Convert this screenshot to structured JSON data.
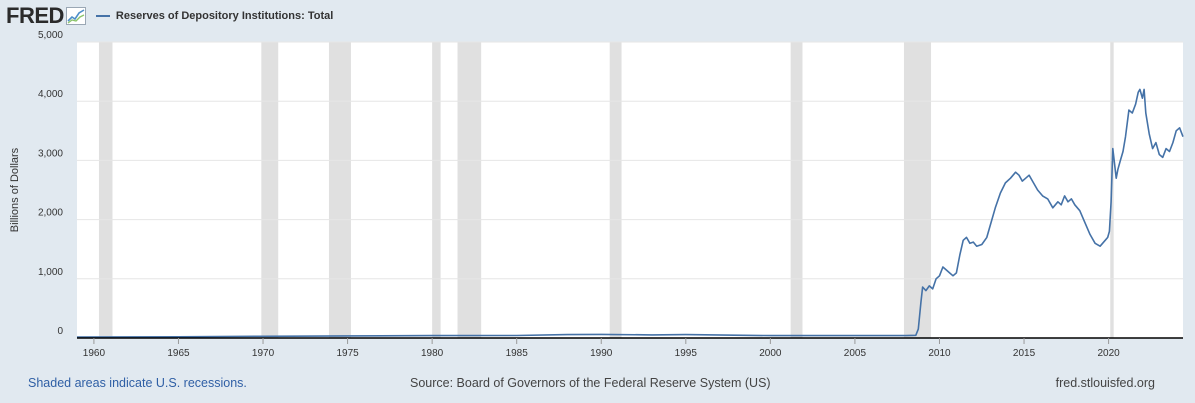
{
  "header": {
    "logo": "FRED",
    "series_label": "Reserves of Depository Institutions: Total"
  },
  "footer": {
    "recessions_note": "Shaded areas indicate U.S. recessions.",
    "source": "Source: Board of Governors of the Federal Reserve System (US)",
    "site": "fred.stlouisfed.org"
  },
  "colors": {
    "line": "#4572a7",
    "recession": "#e0e0e0",
    "background": "#e1e9f0",
    "plot": "#ffffff"
  },
  "icons": [
    "fred-chart-icon"
  ],
  "chart_data": {
    "type": "line",
    "title": "",
    "xlabel": "",
    "ylabel": "Billions of Dollars",
    "xlim": [
      1959.0,
      2024.4
    ],
    "ylim": [
      0,
      5000
    ],
    "y_ticks": [
      0,
      1000,
      2000,
      3000,
      4000,
      5000
    ],
    "y_tick_labels": [
      "0",
      "1,000",
      "2,000",
      "3,000",
      "4,000",
      "5,000"
    ],
    "x_ticks": [
      1960,
      1965,
      1970,
      1975,
      1980,
      1985,
      1990,
      1995,
      2000,
      2005,
      2010,
      2015,
      2020
    ],
    "x_tick_labels": [
      "1960",
      "1965",
      "1970",
      "1975",
      "1980",
      "1985",
      "1990",
      "1995",
      "2000",
      "2005",
      "2010",
      "2015",
      "2020"
    ],
    "grid": true,
    "legend_position": "top-left",
    "recessions": [
      [
        1960.3,
        1961.1
      ],
      [
        1969.9,
        1970.9
      ],
      [
        1973.9,
        1975.2
      ],
      [
        1980.0,
        1980.5
      ],
      [
        1981.5,
        1982.9
      ],
      [
        1990.5,
        1991.2
      ],
      [
        2001.2,
        2001.9
      ],
      [
        2007.9,
        2009.5
      ],
      [
        2020.1,
        2020.3
      ]
    ],
    "series": [
      {
        "x": [
          1959.0,
          1965.0,
          1970.0,
          1975.0,
          1980.0,
          1985.0,
          1988.0,
          1990.0,
          1993.0,
          1995.0,
          2000.0,
          2005.0,
          2008.0,
          2008.6,
          2008.75,
          2008.9,
          2009.0,
          2009.2,
          2009.4,
          2009.6,
          2009.8,
          2010.0,
          2010.2,
          2010.4,
          2010.6,
          2010.8,
          2011.0,
          2011.2,
          2011.4,
          2011.6,
          2011.8,
          2012.0,
          2012.2,
          2012.5,
          2012.8,
          2013.0,
          2013.3,
          2013.6,
          2013.9,
          2014.2,
          2014.5,
          2014.7,
          2014.9,
          2015.1,
          2015.3,
          2015.5,
          2015.8,
          2016.1,
          2016.4,
          2016.7,
          2017.0,
          2017.2,
          2017.4,
          2017.6,
          2017.8,
          2018.0,
          2018.3,
          2018.6,
          2018.9,
          2019.2,
          2019.5,
          2019.8,
          2019.95,
          2020.05,
          2020.15,
          2020.25,
          2020.35,
          2020.45,
          2020.55,
          2020.7,
          2020.85,
          2021.0,
          2021.2,
          2021.4,
          2021.6,
          2021.75,
          2021.85,
          2022.0,
          2022.1,
          2022.2,
          2022.4,
          2022.6,
          2022.8,
          2023.0,
          2023.2,
          2023.4,
          2023.6,
          2023.8,
          2024.0,
          2024.2,
          2024.4
        ],
        "values": [
          15,
          20,
          28,
          35,
          40,
          42,
          58,
          60,
          52,
          58,
          40,
          40,
          40,
          45,
          150,
          600,
          860,
          800,
          880,
          830,
          1000,
          1050,
          1200,
          1150,
          1100,
          1050,
          1100,
          1400,
          1650,
          1700,
          1600,
          1620,
          1550,
          1580,
          1700,
          1900,
          2200,
          2450,
          2620,
          2700,
          2800,
          2750,
          2650,
          2700,
          2750,
          2650,
          2500,
          2400,
          2350,
          2200,
          2300,
          2250,
          2400,
          2300,
          2350,
          2250,
          2150,
          1950,
          1750,
          1600,
          1550,
          1650,
          1700,
          1800,
          2300,
          3200,
          2950,
          2700,
          2850,
          3000,
          3150,
          3400,
          3850,
          3800,
          3950,
          4150,
          4200,
          4050,
          4200,
          3800,
          3450,
          3200,
          3300,
          3100,
          3050,
          3200,
          3150,
          3300,
          3500,
          3550,
          3400
        ]
      }
    ]
  }
}
